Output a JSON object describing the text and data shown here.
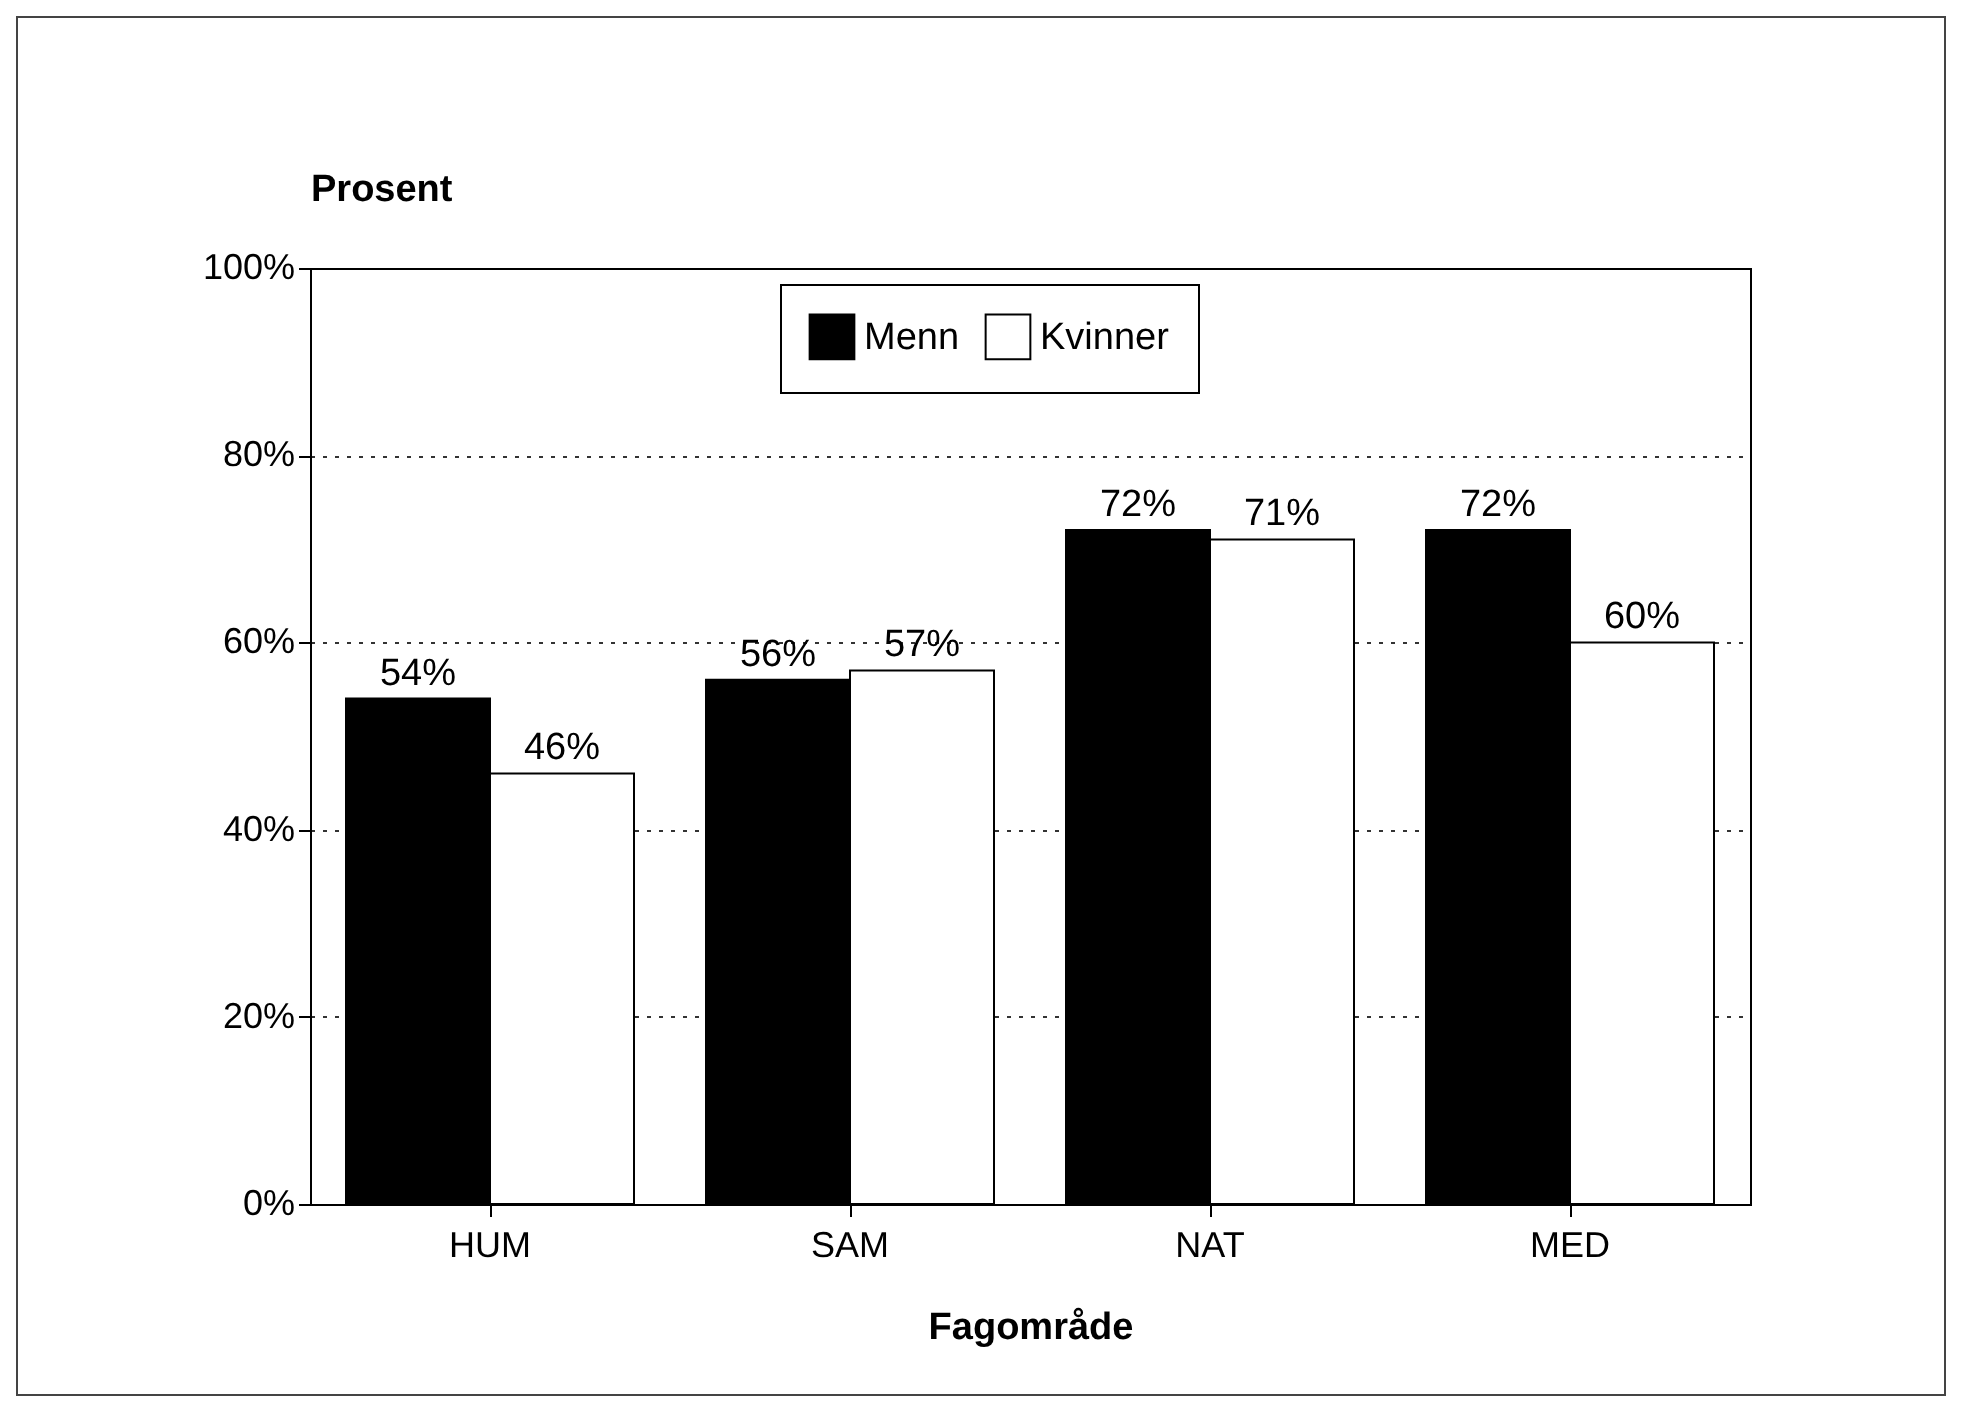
{
  "chart_data": {
    "type": "bar",
    "xlabel": "Fagområde",
    "ylabel": "Prosent",
    "categories": [
      "HUM",
      "SAM",
      "NAT",
      "MED"
    ],
    "series": [
      {
        "name": "Menn",
        "color": "#000000",
        "values": [
          54,
          56,
          72,
          72
        ],
        "value_labels": [
          "54%",
          "56%",
          "72%",
          "72%"
        ]
      },
      {
        "name": "Kvinner",
        "color": "#ffffff",
        "values": [
          46,
          57,
          71,
          60
        ],
        "value_labels": [
          "46%",
          "57%",
          "71%",
          "60%"
        ]
      }
    ],
    "ylim": [
      0,
      100
    ],
    "yticks": [
      {
        "value": 0,
        "label": "0%"
      },
      {
        "value": 20,
        "label": "20%"
      },
      {
        "value": 40,
        "label": "40%"
      },
      {
        "value": 60,
        "label": "60%"
      },
      {
        "value": 80,
        "label": "80%"
      },
      {
        "value": 100,
        "label": "100%"
      }
    ],
    "grid": "y",
    "legend": "top"
  }
}
